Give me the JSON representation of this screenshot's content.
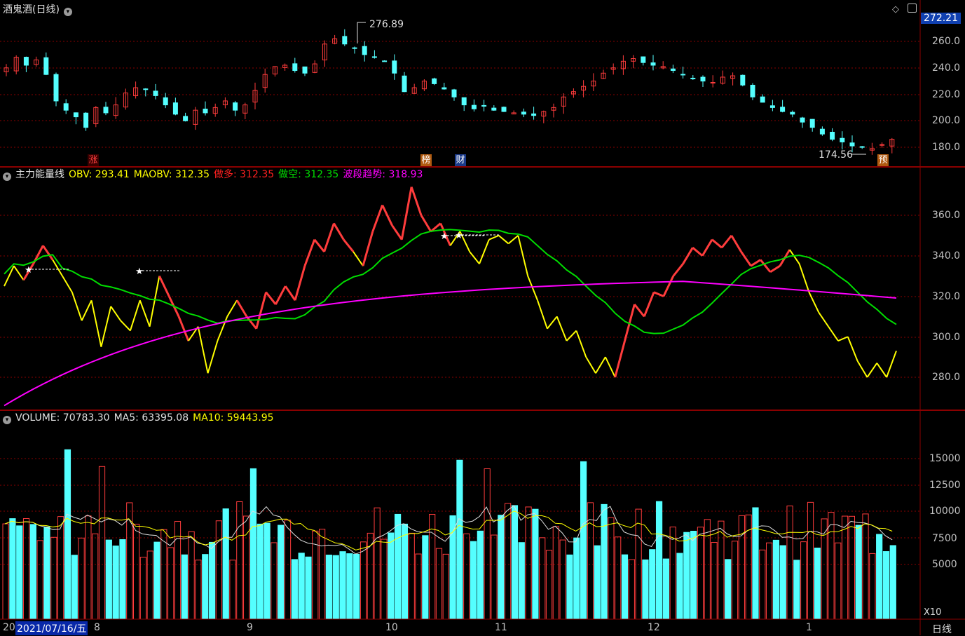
{
  "stock": {
    "title": "酒鬼酒",
    "period": "(日线)"
  },
  "price_panel": {
    "current_price_badge": "272.21",
    "high_note": "276.89",
    "low_note": "174.56",
    "y_ticks": [
      "260.0",
      "240.0",
      "220.0",
      "200.0",
      "180.0"
    ],
    "markers": [
      {
        "label": "涨",
        "color": "#ff4040",
        "bg": "#3a0000"
      },
      {
        "label": "榜",
        "color": "#ffffff",
        "bg": "#b05a10"
      },
      {
        "label": "财",
        "color": "#ffffff",
        "bg": "#1a3a8a"
      },
      {
        "label": "预",
        "color": "#ffffff",
        "bg": "#b05a10"
      }
    ]
  },
  "obv_panel": {
    "name": "主力能量线",
    "obv": "OBV: 293.41",
    "maobv": "MAOBV: 312.35",
    "zuoduo": "做多: 312.35",
    "zuokong": "做空: 312.35",
    "boduan": "波段趋势: 318.93",
    "y_ticks": [
      "360.0",
      "340.0",
      "320.0",
      "300.0",
      "280.0"
    ]
  },
  "volume_panel": {
    "volume": "VOLUME: 70783.30",
    "ma5": "MA5: 63395.08",
    "ma10": "MA10: 59443.95",
    "y_ticks": [
      "15000",
      "12500",
      "10000",
      "7500",
      "5000"
    ],
    "unit": "X10"
  },
  "time_axis": {
    "labels": [
      "20",
      "2021/07/16/五",
      "8",
      "9",
      "10",
      "11",
      "12",
      "1"
    ],
    "period_label": "日线"
  },
  "colors": {
    "up": "#ff3c3c",
    "down": "#54ffff",
    "obv": "#ffff00",
    "ma": "#00dd00",
    "trend": "#ff00ff",
    "grid": "#8a0000"
  },
  "icons": [
    "dropdown-icon",
    "diamond-icon",
    "window-icon"
  ]
}
